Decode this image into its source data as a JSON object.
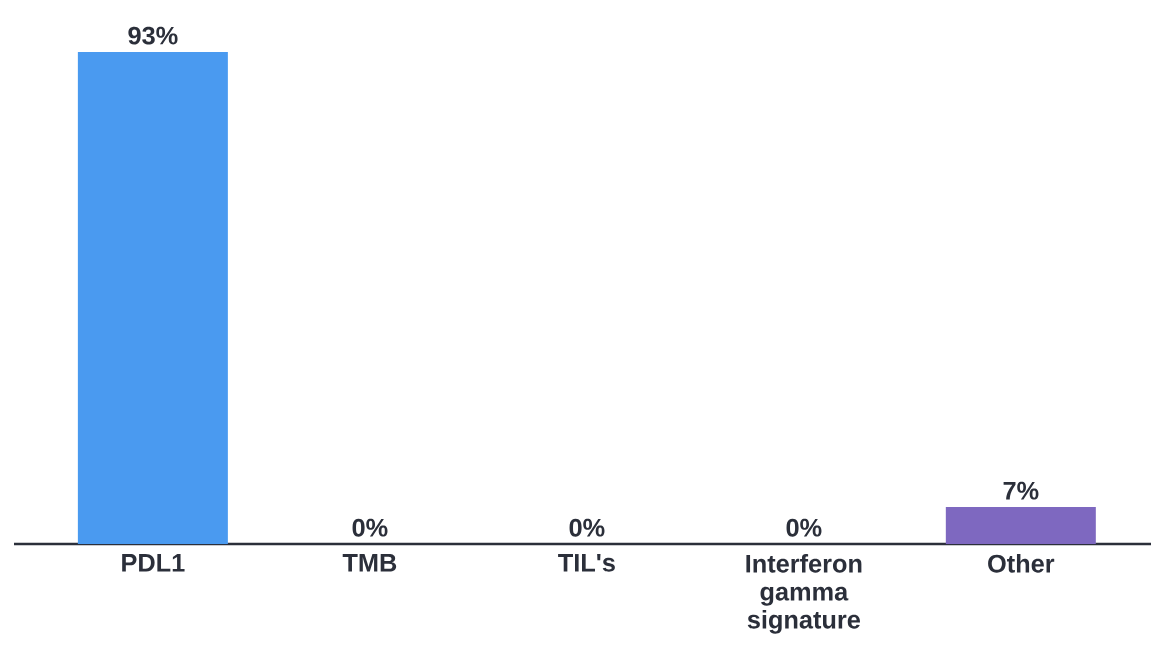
{
  "chart_data": {
    "type": "bar",
    "categories": [
      "PDL1",
      "TMB",
      "TIL's",
      "Interferon gamma signature",
      "Other"
    ],
    "values": [
      93,
      0,
      0,
      0,
      7
    ],
    "colors": [
      "#4a9af0",
      "#4a9af0",
      "#4a9af0",
      "#4a9af0",
      "#7e68c0"
    ],
    "value_labels": [
      "93%",
      "0%",
      "0%",
      "0%",
      "7%"
    ]
  }
}
